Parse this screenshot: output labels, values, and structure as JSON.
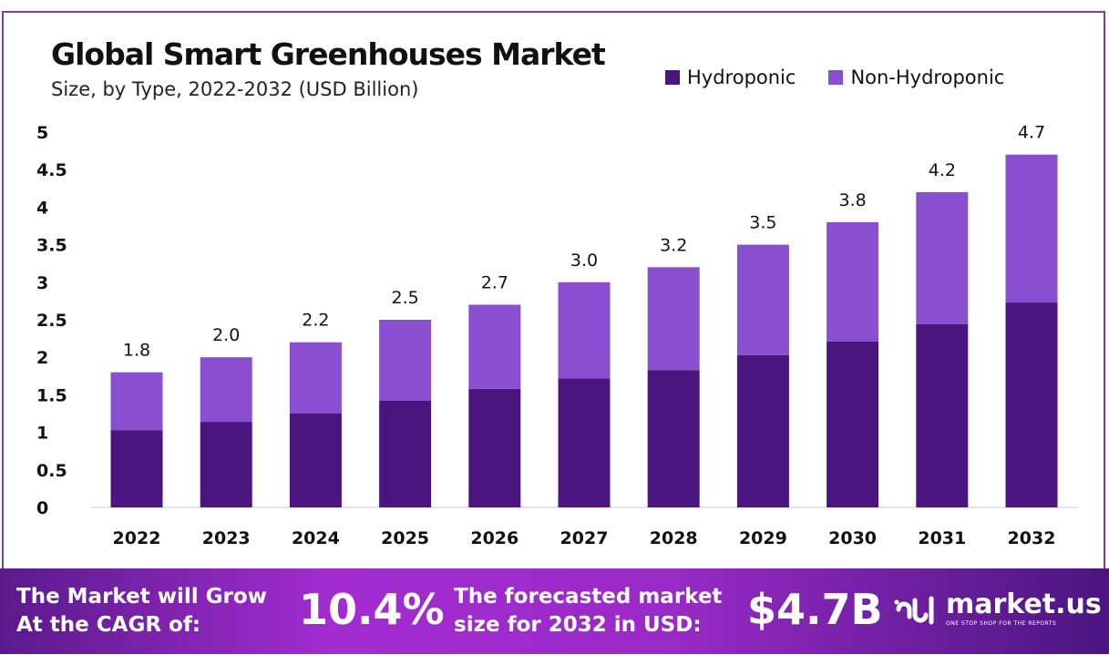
{
  "chart_data": {
    "type": "bar",
    "stacked": true,
    "title": "Global Smart Greenhouses Market",
    "subtitle": "Size, by Type, 2022-2032 (USD Billion)",
    "categories": [
      "2022",
      "2023",
      "2024",
      "2025",
      "2026",
      "2027",
      "2028",
      "2029",
      "2030",
      "2031",
      "2032"
    ],
    "series": [
      {
        "name": "Hydroponic",
        "color": "#4b1580",
        "values": [
          1.03,
          1.14,
          1.25,
          1.42,
          1.58,
          1.72,
          1.83,
          2.03,
          2.21,
          2.44,
          2.73
        ]
      },
      {
        "name": "Non-Hydroponic",
        "color": "#8a4fd0",
        "values": [
          0.77,
          0.86,
          0.95,
          1.08,
          1.12,
          1.28,
          1.37,
          1.47,
          1.59,
          1.76,
          1.97
        ]
      }
    ],
    "totals_labels": [
      "1.8",
      "2.0",
      "2.2",
      "2.5",
      "2.7",
      "3.0",
      "3.2",
      "3.5",
      "3.8",
      "4.2",
      "4.7"
    ],
    "ylim": [
      0,
      5
    ],
    "yticks": [
      "0",
      "0.5",
      "1",
      "1.5",
      "2",
      "2.5",
      "3",
      "3.5",
      "4",
      "4.5",
      "5"
    ],
    "grid": false,
    "legend_position": "top-right"
  },
  "footer": {
    "cagr_label": "The Market will Grow At the CAGR of:",
    "cagr_value": "10.4%",
    "forecast_label": "The forecasted market size for 2032 in USD:",
    "forecast_value": "$4.7B",
    "brand": "market.us",
    "tagline": "ONE STOP SHOP FOR THE REPORTS"
  }
}
